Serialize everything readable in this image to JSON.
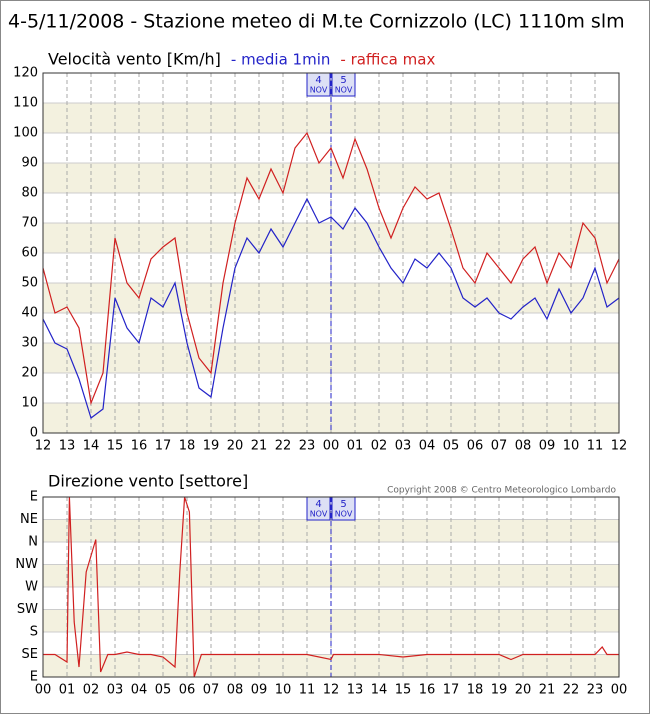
{
  "title": "4-5/11/2008 - Stazione meteo di M.te Cornizzolo (LC) 1110m slm",
  "copyright": "Copyright 2008 © Centro Meteorologico Lombardo",
  "chart_data": [
    {
      "type": "line",
      "title": "Velocità vento [Km/h]",
      "x": [
        0,
        0.5,
        1,
        1.5,
        2,
        2.5,
        3,
        3.5,
        4,
        4.5,
        5,
        5.5,
        6,
        6.5,
        7,
        7.5,
        8,
        8.5,
        9,
        9.5,
        10,
        10.5,
        11,
        11.5,
        12,
        12.5,
        13,
        13.5,
        14,
        14.5,
        15,
        15.5,
        16,
        16.5,
        17,
        17.5,
        18,
        18.5,
        19,
        19.5,
        20,
        20.5,
        21,
        21.5,
        22,
        22.5,
        23,
        23.5,
        24
      ],
      "series": [
        {
          "name": "- media 1min",
          "color": "#2323c8",
          "values": [
            38,
            30,
            28,
            18,
            5,
            8,
            45,
            35,
            30,
            45,
            42,
            50,
            30,
            15,
            12,
            35,
            55,
            65,
            60,
            68,
            62,
            70,
            78,
            70,
            72,
            68,
            75,
            70,
            62,
            55,
            50,
            58,
            55,
            60,
            55,
            45,
            42,
            45,
            40,
            38,
            42,
            45,
            38,
            48,
            40,
            45,
            55,
            42,
            45
          ]
        },
        {
          "name": "- raffica max",
          "color": "#d02020",
          "values": [
            55,
            40,
            42,
            35,
            10,
            20,
            65,
            50,
            45,
            58,
            62,
            65,
            40,
            25,
            20,
            50,
            70,
            85,
            78,
            88,
            80,
            95,
            100,
            90,
            95,
            85,
            98,
            88,
            75,
            65,
            75,
            82,
            78,
            80,
            68,
            55,
            50,
            60,
            55,
            50,
            58,
            62,
            50,
            60,
            55,
            70,
            65,
            50,
            58
          ]
        }
      ],
      "xlim": [
        0,
        24
      ],
      "xticks": [
        {
          "value": 0,
          "label": "12"
        },
        {
          "value": 1,
          "label": "13"
        },
        {
          "value": 2,
          "label": "14"
        },
        {
          "value": 3,
          "label": "15"
        },
        {
          "value": 4,
          "label": "16"
        },
        {
          "value": 5,
          "label": "17"
        },
        {
          "value": 6,
          "label": "18"
        },
        {
          "value": 7,
          "label": "19"
        },
        {
          "value": 8,
          "label": "20"
        },
        {
          "value": 9,
          "label": "21"
        },
        {
          "value": 10,
          "label": "22"
        },
        {
          "value": 11,
          "label": "23"
        },
        {
          "value": 12,
          "label": "00"
        },
        {
          "value": 13,
          "label": "01"
        },
        {
          "value": 14,
          "label": "02"
        },
        {
          "value": 15,
          "label": "03"
        },
        {
          "value": 16,
          "label": "04"
        },
        {
          "value": 17,
          "label": "05"
        },
        {
          "value": 18,
          "label": "06"
        },
        {
          "value": 19,
          "label": "07"
        },
        {
          "value": 20,
          "label": "08"
        },
        {
          "value": 21,
          "label": "09"
        },
        {
          "value": 22,
          "label": "10"
        },
        {
          "value": 23,
          "label": "11"
        },
        {
          "value": 24,
          "label": "12"
        }
      ],
      "ylim": [
        0,
        120
      ],
      "yticks": [
        0,
        10,
        20,
        30,
        40,
        50,
        60,
        70,
        80,
        90,
        100,
        110,
        120
      ],
      "grid": true,
      "divider": 12,
      "day_labels": [
        [
          "4",
          "NOV"
        ],
        [
          "5",
          "NOV"
        ]
      ]
    },
    {
      "type": "line",
      "title": "Direzione vento [settore]",
      "x": [
        0,
        0.5,
        1,
        1.1,
        1.3,
        1.5,
        1.8,
        2.2,
        2.4,
        2.7,
        3,
        3.5,
        4,
        4.5,
        5,
        5.5,
        5.7,
        5.9,
        6.1,
        6.3,
        6.6,
        7,
        8,
        9,
        10,
        11,
        12,
        12.1,
        13,
        14,
        15,
        16,
        17,
        18,
        19,
        19.5,
        20,
        21,
        22,
        23,
        23.3,
        23.5,
        24
      ],
      "series": [
        {
          "name": null,
          "color": "#d02020",
          "values": [
            135,
            135,
            120,
            450,
            200,
            110,
            300,
            365,
            100,
            135,
            135,
            140,
            135,
            135,
            130,
            110,
            300,
            450,
            420,
            90,
            135,
            135,
            135,
            135,
            135,
            135,
            125,
            135,
            135,
            135,
            130,
            135,
            135,
            135,
            135,
            125,
            135,
            135,
            135,
            135,
            150,
            135,
            135
          ]
        }
      ],
      "xlim": [
        0,
        24
      ],
      "xticks": [
        {
          "value": 0,
          "label": "00"
        },
        {
          "value": 1,
          "label": "01"
        },
        {
          "value": 2,
          "label": "02"
        },
        {
          "value": 3,
          "label": "03"
        },
        {
          "value": 4,
          "label": "04"
        },
        {
          "value": 5,
          "label": "05"
        },
        {
          "value": 6,
          "label": "06"
        },
        {
          "value": 7,
          "label": "07"
        },
        {
          "value": 8,
          "label": "08"
        },
        {
          "value": 9,
          "label": "09"
        },
        {
          "value": 10,
          "label": "10"
        },
        {
          "value": 11,
          "label": "11"
        },
        {
          "value": 12,
          "label": "12"
        },
        {
          "value": 13,
          "label": "13"
        },
        {
          "value": 14,
          "label": "14"
        },
        {
          "value": 15,
          "label": "15"
        },
        {
          "value": 16,
          "label": "16"
        },
        {
          "value": 17,
          "label": "17"
        },
        {
          "value": 18,
          "label": "18"
        },
        {
          "value": 19,
          "label": "19"
        },
        {
          "value": 20,
          "label": "20"
        },
        {
          "value": 21,
          "label": "21"
        },
        {
          "value": 22,
          "label": "22"
        },
        {
          "value": 23,
          "label": "23"
        },
        {
          "value": 24,
          "label": "00"
        }
      ],
      "ylim": [
        90,
        450
      ],
      "yticks": [
        {
          "value": 90,
          "label": "E"
        },
        {
          "value": 135,
          "label": "SE"
        },
        {
          "value": 180,
          "label": "S"
        },
        {
          "value": 225,
          "label": "SW"
        },
        {
          "value": 270,
          "label": "W"
        },
        {
          "value": 315,
          "label": "NW"
        },
        {
          "value": 360,
          "label": "N"
        },
        {
          "value": 405,
          "label": "NE"
        },
        {
          "value": 450,
          "label": "E"
        }
      ],
      "grid": true,
      "divider": 12,
      "day_labels": [
        [
          "4",
          "NOV"
        ],
        [
          "5",
          "NOV"
        ]
      ]
    }
  ]
}
